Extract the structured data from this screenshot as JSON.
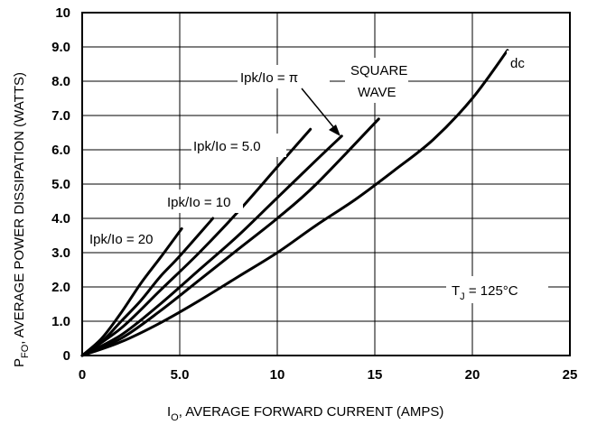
{
  "chart_data": {
    "type": "line",
    "xlabel_main": "I",
    "xlabel_sub": "O",
    "xlabel_rest": ", AVERAGE FORWARD CURRENT (AMPS)",
    "ylabel_main": "P",
    "ylabel_sub": "FO",
    "ylabel_rest": ", AVERAGE POWER DISSIPATION (WATTS)",
    "xlim": [
      0,
      25
    ],
    "ylim": [
      0,
      10
    ],
    "x_ticks": [
      "0",
      "5.0",
      "10",
      "15",
      "20",
      "25"
    ],
    "x_tick_values": [
      0,
      5,
      10,
      15,
      20,
      25
    ],
    "y_ticks": [
      "0",
      "1.0",
      "2.0",
      "3.0",
      "4.0",
      "5.0",
      "6.0",
      "7.0",
      "8.0",
      "9.0",
      "10"
    ],
    "y_tick_values": [
      0,
      1,
      2,
      3,
      4,
      5,
      6,
      7,
      8,
      9,
      10
    ],
    "grid": true,
    "series": [
      {
        "name": "Ipk/Io = 20",
        "x": [
          0,
          1,
          2,
          3,
          4,
          5.1
        ],
        "y": [
          0,
          0.5,
          1.25,
          2.1,
          2.85,
          3.7
        ]
      },
      {
        "name": "Ipk/Io = 10",
        "x": [
          0,
          1,
          2,
          3,
          4,
          5,
          6.7
        ],
        "y": [
          0,
          0.4,
          1.0,
          1.6,
          2.3,
          2.9,
          4.0
        ]
      },
      {
        "name": "Ipk/Io = 5.0",
        "x": [
          0,
          2,
          4,
          6,
          8,
          10,
          11.7
        ],
        "y": [
          0,
          0.8,
          1.9,
          3.0,
          4.2,
          5.5,
          6.6
        ]
      },
      {
        "name": "Ipk/Io = π",
        "x": [
          0,
          2,
          4,
          6,
          8,
          10,
          12,
          13.3
        ],
        "y": [
          0,
          0.6,
          1.5,
          2.5,
          3.5,
          4.6,
          5.7,
          6.4
        ]
      },
      {
        "name": "SQUARE WAVE",
        "x": [
          0,
          2,
          4,
          6,
          8,
          10,
          12,
          15.2
        ],
        "y": [
          0,
          0.5,
          1.3,
          2.2,
          3.1,
          4.0,
          5.0,
          6.9
        ]
      },
      {
        "name": "dc",
        "x": [
          0,
          2,
          4,
          6,
          8,
          10,
          12,
          14,
          16,
          18,
          20,
          21.8
        ],
        "y": [
          0,
          0.4,
          0.95,
          1.6,
          2.3,
          3.0,
          3.8,
          4.55,
          5.4,
          6.3,
          7.5,
          8.9
        ]
      }
    ],
    "annotations": {
      "ipk20": "Ipk/Io = 20",
      "ipk10": "Ipk/Io = 10",
      "ipk5": "Ipk/Io = 5.0",
      "ipkpi": "Ipk/Io = π",
      "square_line1": "SQUARE",
      "square_line2": "WAVE",
      "dc": "dc",
      "tj_main": "T",
      "tj_sub": "J",
      "tj_rest": " = 125°C"
    }
  }
}
